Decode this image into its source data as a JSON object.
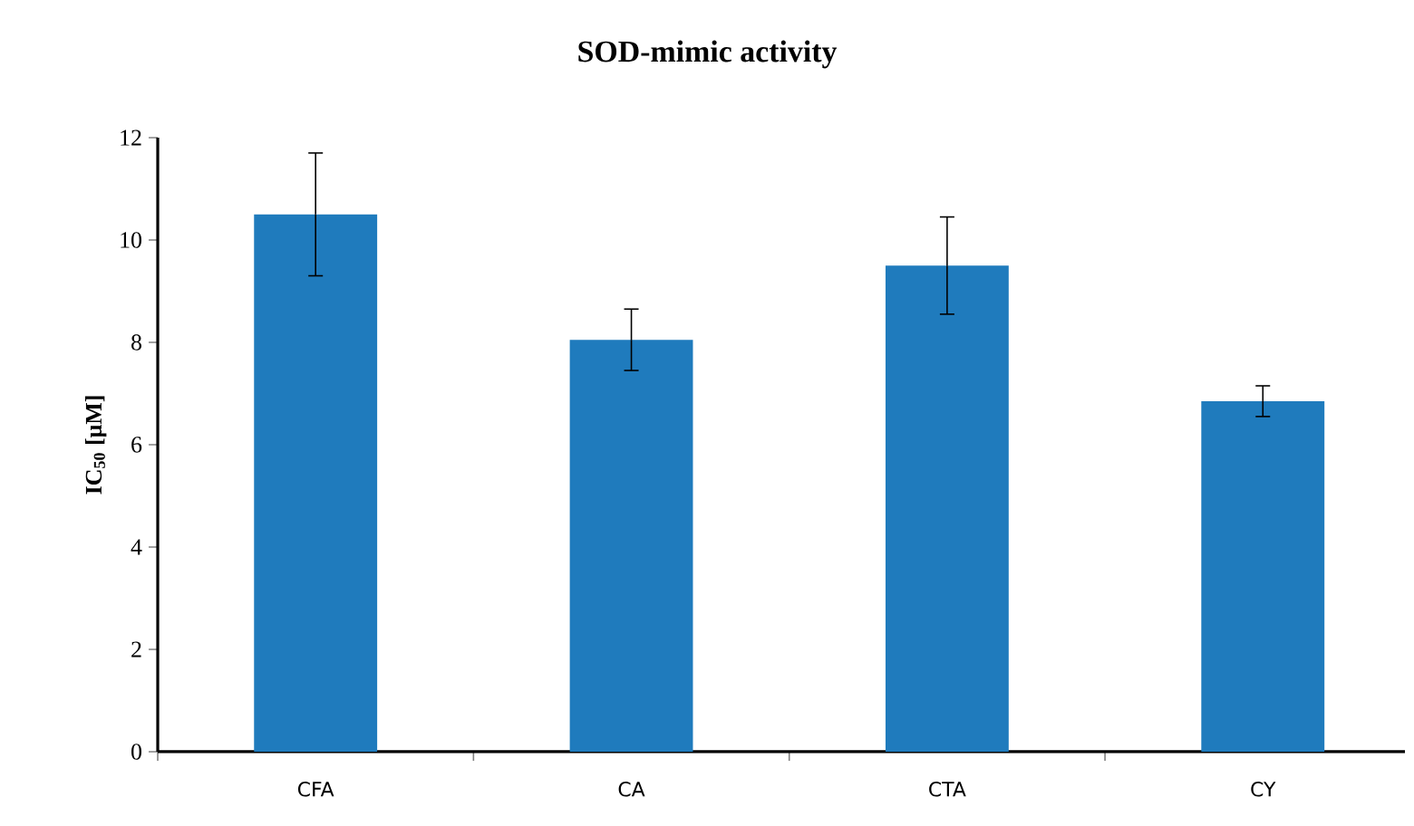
{
  "chart_data": {
    "type": "bar",
    "title": "SOD-mimic activity",
    "ylabel": "IC$_{50}$ [μM]",
    "categories": [
      "CFA",
      "CA",
      "CTA",
      "CY"
    ],
    "values": [
      10.5,
      8.05,
      9.5,
      6.85
    ],
    "errors": [
      1.2,
      0.6,
      0.95,
      0.3
    ],
    "color": "#1f7bbd",
    "ylim": [
      0,
      12
    ],
    "yticks": [
      0,
      2,
      4,
      6,
      8,
      10,
      12
    ]
  }
}
